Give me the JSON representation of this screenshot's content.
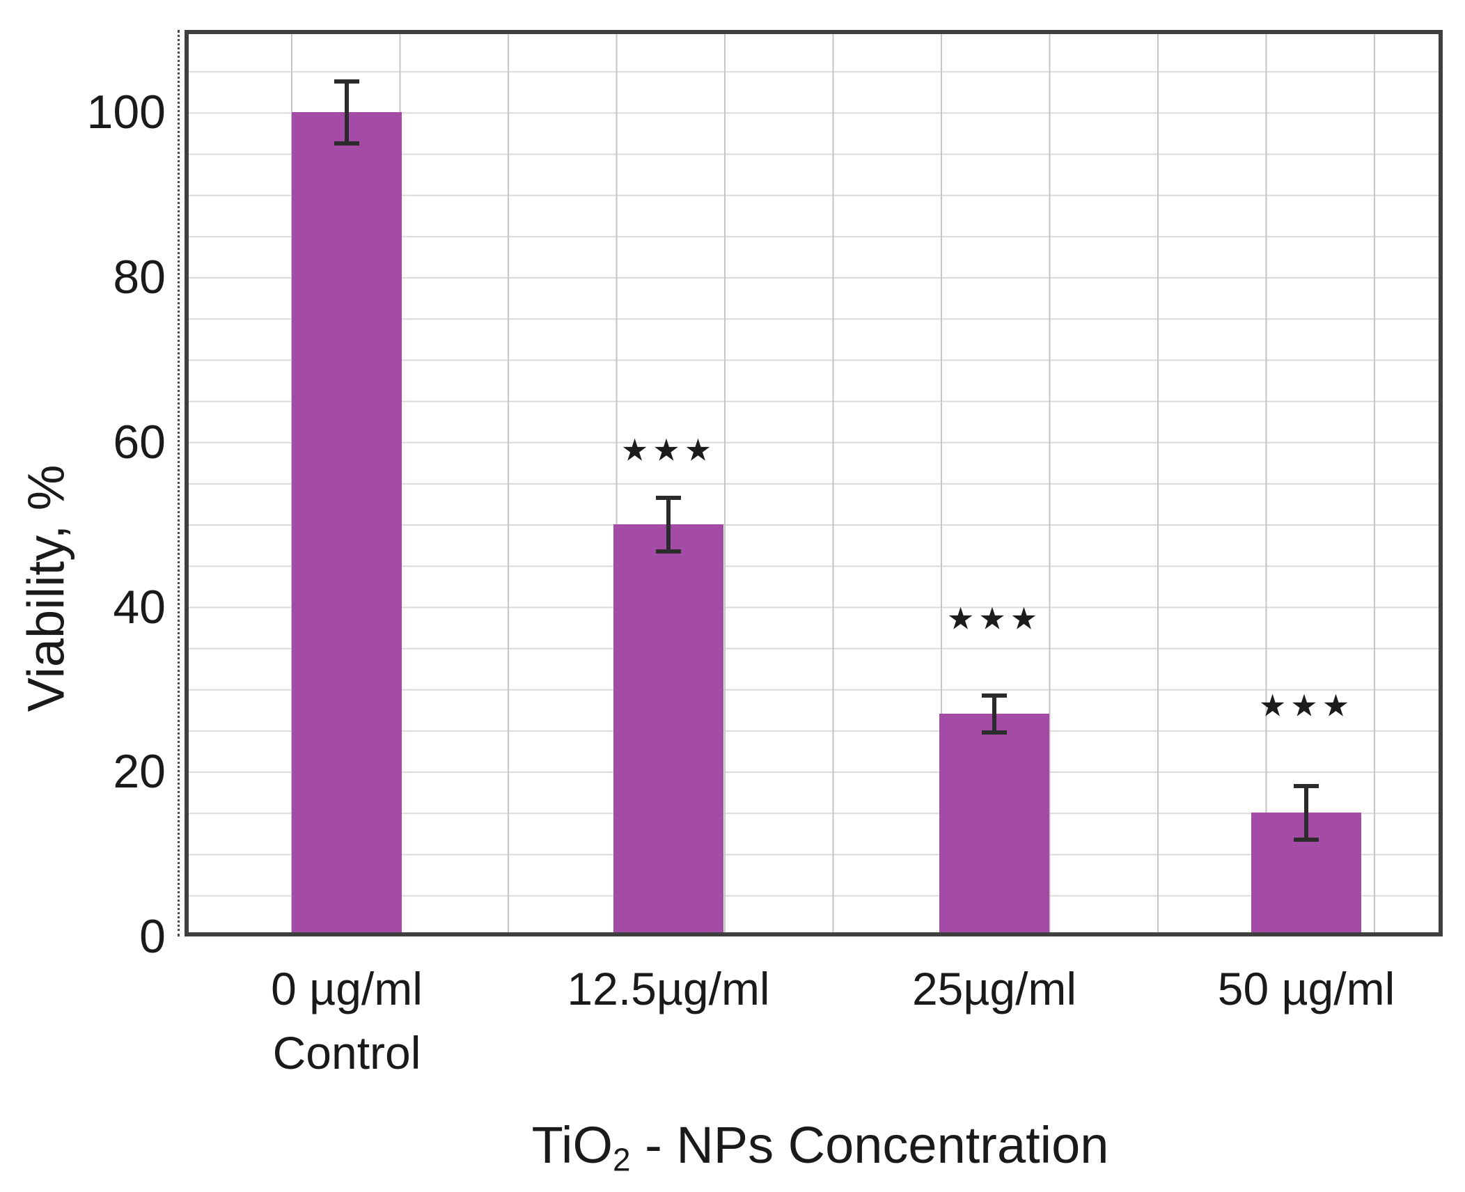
{
  "chart_data": {
    "type": "bar",
    "title": "",
    "ylabel": "Viability, %",
    "xlabel": {
      "pre": "TiO",
      "sub": "2",
      "post": " - NPs Concentration",
      "plain": "TiO2 - NPs Concentration"
    },
    "tick_labels": [
      [
        "0 µg/ml",
        "Control"
      ],
      [
        "12.5µg/ml"
      ],
      [
        "25µg/ml"
      ],
      [
        "50 µg/ml"
      ]
    ],
    "categories": [
      "0 µg/ml Control",
      "12.5 µg/ml",
      "25 µg/ml",
      "50 µg/ml"
    ],
    "values": [
      100,
      50,
      27,
      15
    ],
    "errors": [
      4,
      3.5,
      2.5,
      3.5
    ],
    "significance": [
      "",
      "***",
      "***",
      "***"
    ],
    "significance_glyph": "★",
    "significance_y": [
      null,
      59,
      38.5,
      28
    ],
    "ylim": [
      0,
      110
    ],
    "yticks": [
      0,
      20,
      40,
      60,
      80,
      100
    ],
    "grid": {
      "horizontal_step": 5,
      "vertical_columns": true,
      "legend": "none"
    },
    "colors": {
      "bar": "#a44ba5",
      "axis": "#3f3f3f",
      "grid_h": "#dadada",
      "grid_v": "#c6c6c6",
      "error": "#2b2b2b",
      "text": "#1a1a1a",
      "background": "#ffffff"
    }
  }
}
